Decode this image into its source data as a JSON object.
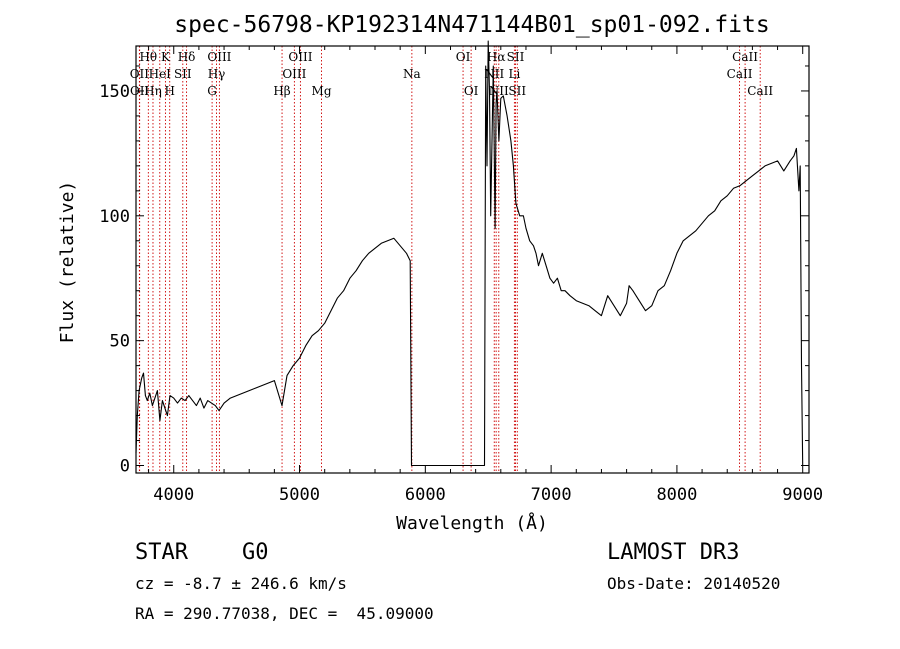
{
  "chart_data": {
    "type": "line",
    "title": "spec-56798-KP192314N471144B01_sp01-092.fits",
    "xlabel": "Wavelength (Å)",
    "ylabel": "Flux (relative)",
    "xlim": [
      3700,
      9050
    ],
    "ylim": [
      -3,
      168
    ],
    "x_ticks": [
      4000,
      5000,
      6000,
      7000,
      8000,
      9000
    ],
    "y_ticks": [
      0,
      50,
      100,
      150
    ],
    "series": [
      {
        "name": "Flux",
        "x": [
          3700,
          3710,
          3725,
          3745,
          3760,
          3775,
          3790,
          3810,
          3830,
          3850,
          3870,
          3890,
          3910,
          3930,
          3950,
          3970,
          4000,
          4030,
          4060,
          4090,
          4120,
          4150,
          4180,
          4210,
          4240,
          4270,
          4300,
          4330,
          4360,
          4400,
          4450,
          4500,
          4550,
          4600,
          4650,
          4700,
          4750,
          4800,
          4861,
          4900,
          4950,
          5000,
          5050,
          5100,
          5150,
          5200,
          5250,
          5300,
          5350,
          5400,
          5450,
          5500,
          5550,
          5600,
          5650,
          5700,
          5750,
          5800,
          5850,
          5880,
          5890,
          5900,
          6000,
          6100,
          6200,
          6300,
          6400,
          6470,
          6480,
          6490,
          6500,
          6510,
          6520,
          6540,
          6555,
          6563,
          6570,
          6585,
          6600,
          6620,
          6650,
          6680,
          6700,
          6720,
          6750,
          6780,
          6800,
          6830,
          6860,
          6880,
          6900,
          6930,
          6960,
          6990,
          7020,
          7050,
          7080,
          7110,
          7150,
          7200,
          7250,
          7300,
          7350,
          7400,
          7450,
          7500,
          7550,
          7600,
          7620,
          7650,
          7700,
          7750,
          7800,
          7850,
          7900,
          7950,
          8000,
          8050,
          8100,
          8150,
          8200,
          8250,
          8300,
          8350,
          8400,
          8450,
          8500,
          8550,
          8600,
          8650,
          8700,
          8750,
          8800,
          8850,
          8900,
          8930,
          8950,
          8970,
          8980,
          8990,
          9000
        ],
        "y": [
          5,
          20,
          30,
          35,
          37,
          28,
          26,
          29,
          24,
          27,
          30,
          18,
          26,
          23,
          20,
          28,
          27,
          25,
          27,
          26,
          28,
          26,
          24,
          27,
          23,
          26,
          25,
          24,
          22,
          25,
          27,
          28,
          29,
          30,
          31,
          32,
          33,
          34,
          24,
          36,
          40,
          43,
          48,
          52,
          54,
          57,
          62,
          67,
          70,
          75,
          78,
          82,
          85,
          87,
          89,
          90,
          91,
          88,
          85,
          82,
          0,
          0,
          0,
          0,
          0,
          0,
          0,
          0,
          160,
          120,
          170,
          150,
          100,
          160,
          95,
          145,
          150,
          130,
          147,
          148,
          140,
          130,
          120,
          105,
          100,
          100,
          95,
          90,
          88,
          85,
          80,
          85,
          80,
          75,
          73,
          75,
          70,
          70,
          68,
          66,
          65,
          64,
          62,
          60,
          68,
          64,
          60,
          65,
          72,
          70,
          66,
          62,
          64,
          70,
          72,
          78,
          85,
          90,
          92,
          94,
          97,
          100,
          102,
          106,
          108,
          111,
          112,
          114,
          116,
          118,
          120,
          121,
          122,
          118,
          122,
          124,
          127,
          110,
          120,
          40,
          0
        ]
      }
    ],
    "spectral_lines": [
      {
        "label": "Hθ",
        "wavelength": 3798,
        "row": 1
      },
      {
        "label": "OII",
        "wavelength": 3727,
        "row": 2
      },
      {
        "label": "OII",
        "wavelength": 3729,
        "row": 3
      },
      {
        "label": "Hη",
        "wavelength": 3835,
        "row": 3
      },
      {
        "label": "K",
        "wavelength": 3934,
        "row": 1
      },
      {
        "label": "HeI",
        "wavelength": 3889,
        "row": 2
      },
      {
        "label": "SII",
        "wavelength": 4072,
        "row": 2
      },
      {
        "label": "H",
        "wavelength": 3968,
        "row": 3
      },
      {
        "label": "Hδ",
        "wavelength": 4102,
        "row": 1
      },
      {
        "label": "OIII",
        "wavelength": 4363,
        "row": 1
      },
      {
        "label": "Hγ",
        "wavelength": 4340,
        "row": 2
      },
      {
        "label": "G",
        "wavelength": 4305,
        "row": 3
      },
      {
        "label": "OIII",
        "wavelength": 5007,
        "row": 1
      },
      {
        "label": "OIII",
        "wavelength": 4959,
        "row": 2
      },
      {
        "label": "Hβ",
        "wavelength": 4861,
        "row": 3
      },
      {
        "label": "Mg",
        "wavelength": 5175,
        "row": 3
      },
      {
        "label": "Na",
        "wavelength": 5893,
        "row": 2
      },
      {
        "label": "OI",
        "wavelength": 6300,
        "row": 1
      },
      {
        "label": "OI",
        "wavelength": 6364,
        "row": 3
      },
      {
        "label": "Hα",
        "wavelength": 6563,
        "row": 1
      },
      {
        "label": "NII",
        "wavelength": 6548,
        "row": 2
      },
      {
        "label": "NII",
        "wavelength": 6584,
        "row": 3
      },
      {
        "label": "SII",
        "wavelength": 6717,
        "row": 1
      },
      {
        "label": "Li",
        "wavelength": 6708,
        "row": 2
      },
      {
        "label": "SII",
        "wavelength": 6731,
        "row": 3
      },
      {
        "label": "CaII",
        "wavelength": 8542,
        "row": 1
      },
      {
        "label": "CaII",
        "wavelength": 8498,
        "row": 2
      },
      {
        "label": "CaII",
        "wavelength": 8662,
        "row": 3
      }
    ]
  },
  "info": {
    "object_class": "STAR",
    "subclass": "G0",
    "survey": "LAMOST DR3",
    "redshift": "cz = -8.7 ± 246.6 km/s",
    "obs_date": "Obs-Date: 20140520",
    "coords": "RA = 290.77038, DEC =  45.09000"
  },
  "colors": {
    "line": "#000000",
    "marker": "#cc0000"
  }
}
